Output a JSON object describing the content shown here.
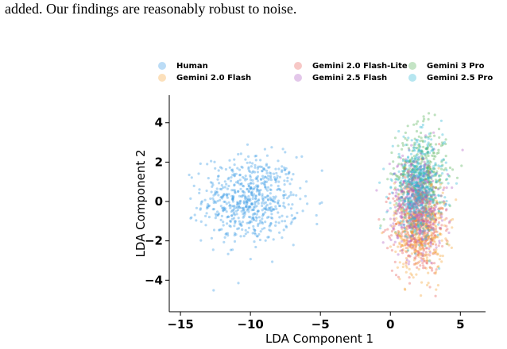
{
  "text_fragment": "added. Our findings are reasonably robust to noise.",
  "chart_data": {
    "type": "scatter",
    "xlabel": "LDA Component 1",
    "ylabel": "LDA Component 2",
    "xlim": [
      -15.8,
      6.8
    ],
    "ylim": [
      -5.6,
      5.4
    ],
    "xticks": [
      -15,
      -10,
      -5,
      0,
      5
    ],
    "yticks": [
      -4,
      -2,
      0,
      2,
      4
    ],
    "xtick_labels": [
      "−15",
      "−10",
      "−5",
      "0",
      "5"
    ],
    "ytick_labels": [
      "−4",
      "−2",
      "0",
      "2",
      "4"
    ],
    "grid": false,
    "legend_position": "top, above plot (3 columns)",
    "series": [
      {
        "name": "Human",
        "color": "#3b9be6",
        "center": [
          -10.0,
          0.1
        ],
        "spread": [
          1.7,
          1.1
        ],
        "count": 650
      },
      {
        "name": "Gemini 2.0 Flash-Lite",
        "color": "#e8605c",
        "center": [
          2.0,
          -1.2
        ],
        "spread": [
          0.9,
          1.2
        ],
        "count": 450
      },
      {
        "name": "Gemini 3 Pro",
        "color": "#57b35a",
        "center": [
          2.2,
          1.3
        ],
        "spread": [
          0.9,
          1.2
        ],
        "count": 450
      },
      {
        "name": "Gemini 2.0 Flash",
        "color": "#f5a53b",
        "center": [
          2.1,
          -1.3
        ],
        "spread": [
          0.9,
          1.2
        ],
        "count": 450
      },
      {
        "name": "Gemini 2.5 Flash",
        "color": "#b05ec2",
        "center": [
          1.9,
          0.0
        ],
        "spread": [
          0.9,
          1.2
        ],
        "count": 450
      },
      {
        "name": "Gemini 2.5 Pro",
        "color": "#2fb8d4",
        "center": [
          2.0,
          0.7
        ],
        "spread": [
          0.9,
          1.2
        ],
        "count": 450
      }
    ]
  }
}
